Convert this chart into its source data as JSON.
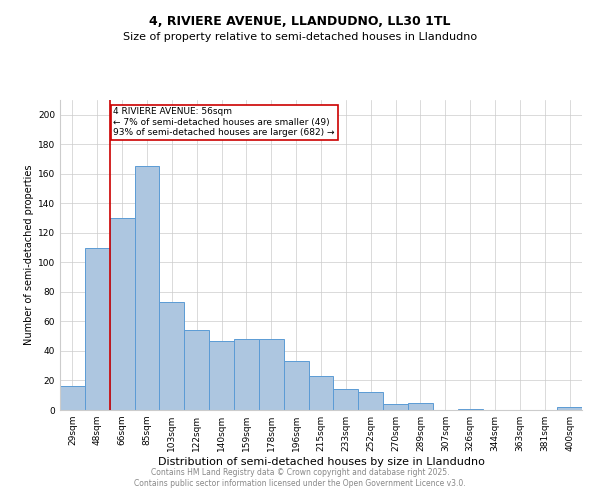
{
  "title": "4, RIVIERE AVENUE, LLANDUDNO, LL30 1TL",
  "subtitle": "Size of property relative to semi-detached houses in Llandudno",
  "xlabel": "Distribution of semi-detached houses by size in Llandudno",
  "ylabel": "Number of semi-detached properties",
  "footer1": "Contains HM Land Registry data © Crown copyright and database right 2025.",
  "footer2": "Contains public sector information licensed under the Open Government Licence v3.0.",
  "categories": [
    "29sqm",
    "48sqm",
    "66sqm",
    "85sqm",
    "103sqm",
    "122sqm",
    "140sqm",
    "159sqm",
    "178sqm",
    "196sqm",
    "215sqm",
    "233sqm",
    "252sqm",
    "270sqm",
    "289sqm",
    "307sqm",
    "326sqm",
    "344sqm",
    "363sqm",
    "381sqm",
    "400sqm"
  ],
  "values": [
    16,
    110,
    130,
    165,
    73,
    54,
    47,
    48,
    48,
    33,
    23,
    14,
    12,
    4,
    5,
    0,
    1,
    0,
    0,
    0,
    2
  ],
  "bar_color": "#adc6e0",
  "bar_edge_color": "#5b9bd5",
  "annotation_text": "4 RIVIERE AVENUE: 56sqm\n← 7% of semi-detached houses are smaller (49)\n93% of semi-detached houses are larger (682) →",
  "annotation_box_color": "#ffffff",
  "annotation_box_edge": "#cc0000",
  "vline_color": "#cc0000",
  "vline_x": 1.5,
  "ylim": [
    0,
    210
  ],
  "yticks": [
    0,
    20,
    40,
    60,
    80,
    100,
    120,
    140,
    160,
    180,
    200
  ],
  "grid_color": "#cccccc",
  "background_color": "#ffffff",
  "title_fontsize": 9,
  "subtitle_fontsize": 8,
  "xlabel_fontsize": 8,
  "ylabel_fontsize": 7,
  "tick_fontsize": 6.5,
  "annotation_fontsize": 6.5,
  "footer_fontsize": 5.5
}
